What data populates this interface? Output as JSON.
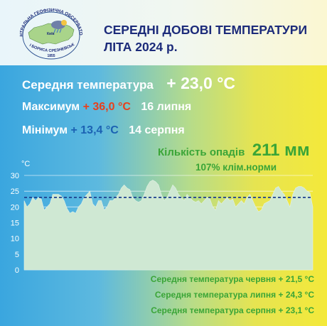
{
  "header": {
    "logo_text_top": "ЦЕНТРАЛЬНА ГЕОФІЗИЧНА ОБСЕРВАТОРІЯ",
    "logo_text_bottom": "ІМЕНІ БОРИСА СРЕЗНЕВСЬКОГО",
    "logo_city": "Київ",
    "logo_year": "1855",
    "title_line1": "СЕРЕДНІ ДОБОВІ ТЕМПЕРАТУРИ",
    "title_line2": "ЛІТА 2024 р."
  },
  "stats": {
    "avg_label": "Середня температура",
    "avg_value": "+ 23,0 °C",
    "max_label": "Максимум",
    "max_value": "+ 36,0 °C",
    "max_date": "16 липня",
    "min_label": "Мінімум",
    "min_value": "+ 13,4 °C",
    "min_date": "14 серпня"
  },
  "precip": {
    "label": "Кількість опадів",
    "value": "211 мм",
    "norm": "107% клім.норми"
  },
  "monthly": {
    "june": "Середня температура червня  + 21,5 °C",
    "july": "Середня температура липня  + 24,3 °C",
    "august": "Середня температура серпня  + 23,1 °C"
  },
  "colors": {
    "title": "#1c2b7a",
    "green": "#3aa537",
    "red": "#e8401c",
    "blue": "#1b62b3",
    "area_fill": "#cfe8d3",
    "mean_line": "#1c3f8f"
  },
  "chart_data": {
    "type": "area",
    "ylabel": "°C",
    "ylim": [
      0,
      30
    ],
    "yticks": [
      0,
      5,
      10,
      15,
      20,
      25,
      30
    ],
    "grid": true,
    "mean_line": 23.0,
    "values": [
      22,
      20,
      21,
      23,
      22,
      23,
      22.5,
      19,
      20,
      21,
      24,
      24,
      24,
      23.5,
      22,
      19.5,
      18,
      18.5,
      18,
      20,
      21,
      23,
      24,
      25,
      21,
      20,
      22,
      22,
      19,
      20,
      22,
      22,
      23,
      24,
      26,
      27,
      26,
      25.5,
      23,
      22,
      21.5,
      22,
      24,
      26.5,
      28,
      28.5,
      28,
      27,
      24,
      22,
      23,
      25,
      27,
      26,
      24,
      23,
      22,
      24,
      23,
      22,
      21.5,
      22,
      21,
      22,
      23,
      22.5,
      20,
      19,
      22,
      21,
      22,
      23,
      22,
      22.5,
      20,
      21,
      22,
      21,
      23,
      24,
      22,
      20,
      18.5,
      19,
      21,
      21.5,
      22,
      24,
      26,
      26.5,
      25,
      24,
      22,
      20,
      24,
      26,
      26.5,
      26.5,
      26,
      25,
      24.5,
      20
    ]
  }
}
